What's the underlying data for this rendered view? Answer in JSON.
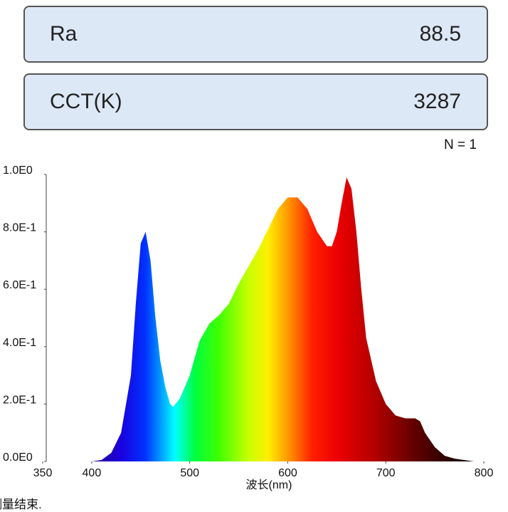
{
  "panels": [
    {
      "label": "Ra",
      "value": 88.5
    },
    {
      "label": "CCT(K)",
      "value": 3287
    }
  ],
  "count": "N = 1",
  "status": "测量结束.",
  "chart_data": {
    "type": "area",
    "xlabel": "波长(nm)",
    "x": [
      380,
      390,
      400,
      410,
      420,
      430,
      440,
      445,
      450,
      455,
      460,
      465,
      470,
      475,
      480,
      483,
      490,
      500,
      510,
      520,
      530,
      540,
      550,
      560,
      570,
      580,
      590,
      600,
      610,
      620,
      630,
      640,
      645,
      650,
      655,
      660,
      665,
      670,
      675,
      680,
      690,
      700,
      710,
      720,
      730,
      735,
      740,
      750,
      760,
      770,
      780,
      790,
      800
    ],
    "values": [
      0,
      0,
      0,
      0.005,
      0.03,
      0.1,
      0.3,
      0.55,
      0.76,
      0.8,
      0.7,
      0.5,
      0.35,
      0.26,
      0.2,
      0.19,
      0.22,
      0.3,
      0.42,
      0.48,
      0.51,
      0.55,
      0.62,
      0.68,
      0.74,
      0.81,
      0.88,
      0.92,
      0.92,
      0.88,
      0.8,
      0.75,
      0.75,
      0.8,
      0.9,
      0.99,
      0.95,
      0.8,
      0.6,
      0.43,
      0.28,
      0.2,
      0.16,
      0.15,
      0.15,
      0.14,
      0.1,
      0.05,
      0.02,
      0.01,
      0.005,
      0,
      0
    ],
    "xlim": [
      350,
      800
    ],
    "xticks": [
      350,
      400,
      500,
      600,
      700,
      800
    ],
    "ylim": [
      0,
      1
    ],
    "yticks": [
      {
        "value": 0,
        "label": "0.0E0"
      },
      {
        "value": 0.2,
        "label": "2.0E-1"
      },
      {
        "value": 0.4,
        "label": "4.0E-1"
      },
      {
        "value": 0.6,
        "label": "6.0E-1"
      },
      {
        "value": 0.8,
        "label": "8.0E-1"
      },
      {
        "value": 1,
        "label": "1.0E0"
      }
    ]
  }
}
